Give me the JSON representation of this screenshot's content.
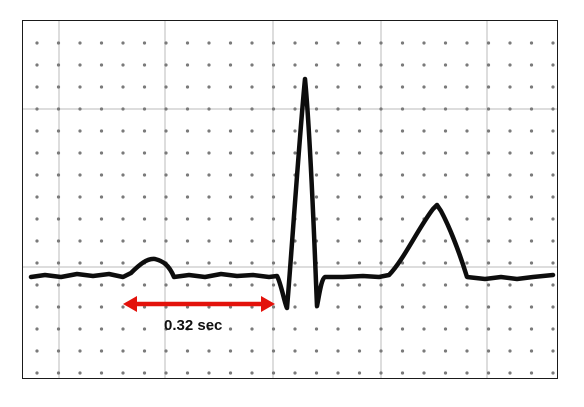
{
  "measurement": {
    "label": "0.32 sec",
    "arrow_color": "#e3120b"
  },
  "trace_color": "#0d0d0d",
  "grid_line_color": "#d2d2d2",
  "grid_dot_color": "#7a7a7a"
}
